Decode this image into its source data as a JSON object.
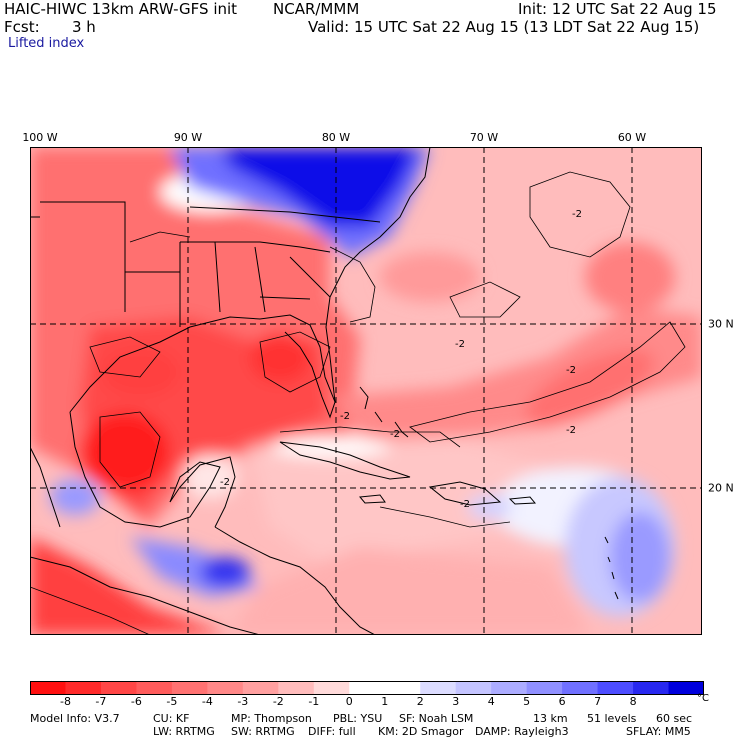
{
  "header": {
    "title_left": "HAIC-HIWC 13km ARW-GFS init",
    "org": "NCAR/MMM",
    "init": "Init: 12 UTC Sat 22 Aug 15",
    "fcst_label": "Fcst:",
    "fcst_value": "3 h",
    "valid": "Valid: 15 UTC Sat 22 Aug 15 (13 LDT Sat 22 Aug 15)",
    "field": "Lifted index"
  },
  "map": {
    "lon_labels": [
      "100 W",
      "90 W",
      "80 W",
      "70 W",
      "60 W"
    ],
    "lat_labels": [
      "30 N",
      "20 N"
    ],
    "contour_labels": [
      "-2",
      "-2",
      "-2",
      "-2",
      "-2",
      "-2",
      "-2",
      "-2"
    ],
    "colors": {
      "strong_unstable": "#ff1a1a",
      "unstable": "#ff7070",
      "weak_unstable": "#ffb4b4",
      "neutral": "#ffffff",
      "weak_stable": "#c8c8ff",
      "stable": "#5050ff",
      "strong_stable": "#0000e0"
    }
  },
  "colorbar": {
    "ticks": [
      "-8",
      "-7",
      "-6",
      "-5",
      "-4",
      "-3",
      "-2",
      "-1",
      "0",
      "1",
      "2",
      "3",
      "4",
      "5",
      "6",
      "7",
      "8"
    ],
    "unit": "°C",
    "colors": [
      "#ff1010",
      "#ff2a2a",
      "#ff4646",
      "#ff5c5c",
      "#ff7272",
      "#ff8888",
      "#ffa0a0",
      "#ffbcbc",
      "#ffdada",
      "#ffffff",
      "#ffffff",
      "#dcdcff",
      "#c4c4ff",
      "#acacff",
      "#9090ff",
      "#7070ff",
      "#4d4dff",
      "#2828f0",
      "#0000dd"
    ]
  },
  "footer": {
    "line1": [
      "Model Info: V3.7",
      "CU: KF",
      "MP: Thompson",
      "PBL: YSU",
      "SF: Noah LSM",
      "13 km",
      "51 levels",
      "60 sec"
    ],
    "line2": [
      "LW: RRTMG",
      "SW: RRTMG",
      "DIFF: full",
      "KM: 2D Smagor",
      "DAMP: Rayleigh3",
      "SFLAY: MM5"
    ]
  }
}
